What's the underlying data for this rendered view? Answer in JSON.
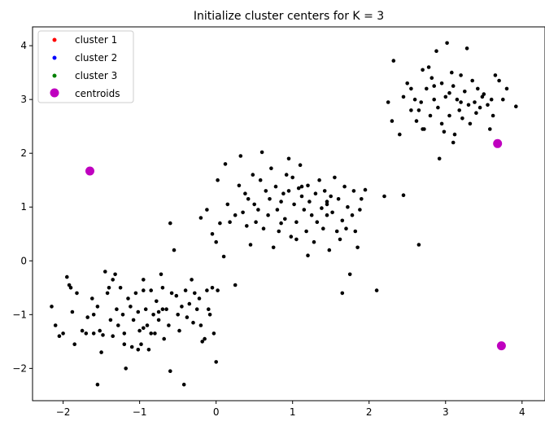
{
  "chart_data": {
    "type": "scatter",
    "title": "Initialize cluster centers for K = 3",
    "xlabel": "",
    "ylabel": "",
    "xlim": [
      -2.4,
      4.3
    ],
    "ylim": [
      -2.6,
      4.35
    ],
    "xticks": [
      -2,
      -1,
      0,
      1,
      2,
      3,
      4
    ],
    "yticks": [
      -2,
      -1,
      0,
      1,
      2,
      3,
      4
    ],
    "grid": false,
    "legend_position": "top-left",
    "legend": [
      {
        "label": "cluster 1",
        "color": "#ff0000",
        "marker": "small-dot"
      },
      {
        "label": "cluster 2",
        "color": "#0000ff",
        "marker": "small-dot"
      },
      {
        "label": "cluster 3",
        "color": "#008000",
        "marker": "small-dot"
      },
      {
        "label": "centroids",
        "color": "#bf00bf",
        "marker": "large-dot"
      }
    ],
    "series": [
      {
        "role": "points",
        "color": "#000000",
        "points": [
          [
            -2.15,
            -0.85
          ],
          [
            -2.1,
            -1.2
          ],
          [
            -2.05,
            -1.4
          ],
          [
            -2.0,
            -1.35
          ],
          [
            -1.95,
            -0.3
          ],
          [
            -1.92,
            -0.45
          ],
          [
            -1.9,
            -0.5
          ],
          [
            -1.88,
            -0.95
          ],
          [
            -1.85,
            -1.55
          ],
          [
            -1.82,
            -0.6
          ],
          [
            -1.75,
            -1.3
          ],
          [
            -1.7,
            -1.35
          ],
          [
            -1.68,
            -1.05
          ],
          [
            -1.62,
            -0.7
          ],
          [
            -1.6,
            -1.0
          ],
          [
            -1.55,
            -0.85
          ],
          [
            -1.52,
            -1.3
          ],
          [
            -1.5,
            -1.7
          ],
          [
            -1.45,
            -0.2
          ],
          [
            -1.42,
            -0.6
          ],
          [
            -1.4,
            -0.5
          ],
          [
            -1.38,
            -1.1
          ],
          [
            -1.35,
            -1.4
          ],
          [
            -1.32,
            -0.25
          ],
          [
            -1.3,
            -0.9
          ],
          [
            -1.28,
            -1.2
          ],
          [
            -1.25,
            -0.5
          ],
          [
            -1.22,
            -1.0
          ],
          [
            -1.2,
            -1.35
          ],
          [
            -1.18,
            -2.0
          ],
          [
            -1.15,
            -0.7
          ],
          [
            -1.12,
            -0.85
          ],
          [
            -1.1,
            -1.6
          ],
          [
            -1.08,
            -1.1
          ],
          [
            -1.05,
            -0.6
          ],
          [
            -1.02,
            -0.95
          ],
          [
            -1.0,
            -1.3
          ],
          [
            -0.98,
            -1.55
          ],
          [
            -0.95,
            -0.35
          ],
          [
            -0.92,
            -0.9
          ],
          [
            -0.9,
            -1.2
          ],
          [
            -0.88,
            -1.65
          ],
          [
            -0.85,
            -0.55
          ],
          [
            -0.82,
            -1.0
          ],
          [
            -0.8,
            -1.35
          ],
          [
            -0.78,
            -0.75
          ],
          [
            -0.75,
            -1.1
          ],
          [
            -0.72,
            -0.25
          ],
          [
            -0.7,
            -0.5
          ],
          [
            -0.68,
            -1.45
          ],
          [
            -0.65,
            -0.9
          ],
          [
            -0.62,
            -1.2
          ],
          [
            -0.6,
            -2.05
          ],
          [
            -0.58,
            -0.6
          ],
          [
            -0.55,
            0.2
          ],
          [
            -0.52,
            -0.65
          ],
          [
            -0.5,
            -1.0
          ],
          [
            -0.48,
            -1.3
          ],
          [
            -0.45,
            -0.85
          ],
          [
            -0.42,
            -2.3
          ],
          [
            -0.4,
            -0.55
          ],
          [
            -0.38,
            -1.05
          ],
          [
            -0.35,
            -0.8
          ],
          [
            -0.32,
            -0.35
          ],
          [
            -0.3,
            -1.15
          ],
          [
            -0.28,
            -0.6
          ],
          [
            -0.25,
            -0.9
          ],
          [
            -0.22,
            -0.7
          ],
          [
            -0.2,
            -1.2
          ],
          [
            -0.18,
            -1.5
          ],
          [
            -0.15,
            -1.45
          ],
          [
            -0.12,
            -0.55
          ],
          [
            -0.1,
            -0.9
          ],
          [
            -0.08,
            -1.0
          ],
          [
            -0.05,
            -0.5
          ],
          [
            -0.03,
            -1.35
          ],
          [
            0.0,
            -1.88
          ],
          [
            0.02,
            -0.55
          ],
          [
            -0.6,
            0.7
          ],
          [
            -1.55,
            -2.3
          ],
          [
            -1.2,
            -1.55
          ],
          [
            -0.95,
            -1.25
          ],
          [
            -0.85,
            -1.35
          ],
          [
            -0.75,
            -0.95
          ],
          [
            -0.7,
            -0.9
          ],
          [
            -1.35,
            -0.35
          ],
          [
            -1.48,
            -1.38
          ],
          [
            -1.02,
            -1.65
          ],
          [
            -0.95,
            -0.55
          ],
          [
            -1.6,
            -1.35
          ],
          [
            -0.2,
            0.8
          ],
          [
            -0.12,
            0.95
          ],
          [
            0.0,
            0.35
          ],
          [
            0.02,
            1.5
          ],
          [
            0.05,
            0.7
          ],
          [
            0.1,
            0.08
          ],
          [
            0.12,
            1.8
          ],
          [
            0.15,
            1.05
          ],
          [
            0.18,
            0.72
          ],
          [
            0.25,
            0.85
          ],
          [
            0.3,
            1.4
          ],
          [
            0.32,
            1.95
          ],
          [
            0.35,
            0.9
          ],
          [
            0.38,
            1.25
          ],
          [
            0.4,
            0.65
          ],
          [
            0.42,
            1.15
          ],
          [
            0.45,
            0.3
          ],
          [
            0.48,
            1.6
          ],
          [
            0.5,
            1.05
          ],
          [
            0.52,
            0.72
          ],
          [
            0.55,
            0.95
          ],
          [
            0.58,
            1.5
          ],
          [
            0.6,
            2.02
          ],
          [
            0.62,
            0.6
          ],
          [
            0.65,
            1.3
          ],
          [
            0.68,
            0.85
          ],
          [
            0.7,
            1.15
          ],
          [
            0.72,
            1.72
          ],
          [
            0.75,
            0.25
          ],
          [
            0.78,
            1.38
          ],
          [
            0.8,
            0.95
          ],
          [
            0.82,
            0.55
          ],
          [
            0.85,
            1.1
          ],
          [
            0.88,
            1.25
          ],
          [
            0.9,
            0.78
          ],
          [
            0.92,
            1.6
          ],
          [
            0.95,
            1.9
          ],
          [
            0.98,
            0.45
          ],
          [
            1.0,
            1.55
          ],
          [
            1.02,
            1.05
          ],
          [
            1.05,
            0.72
          ],
          [
            1.08,
            1.35
          ],
          [
            1.1,
            1.78
          ],
          [
            1.12,
            1.2
          ],
          [
            1.15,
            0.95
          ],
          [
            1.18,
            0.55
          ],
          [
            1.2,
            1.4
          ],
          [
            1.22,
            1.1
          ],
          [
            1.25,
            0.85
          ],
          [
            1.28,
            0.35
          ],
          [
            1.3,
            1.25
          ],
          [
            1.32,
            0.72
          ],
          [
            1.35,
            1.5
          ],
          [
            1.38,
            0.98
          ],
          [
            1.4,
            0.6
          ],
          [
            1.42,
            1.3
          ],
          [
            1.45,
            1.05
          ],
          [
            1.48,
            0.2
          ],
          [
            1.5,
            1.2
          ],
          [
            1.52,
            0.9
          ],
          [
            1.55,
            1.55
          ],
          [
            1.58,
            0.55
          ],
          [
            1.6,
            1.15
          ],
          [
            1.62,
            0.4
          ],
          [
            1.65,
            0.75
          ],
          [
            1.68,
            1.38
          ],
          [
            1.7,
            0.6
          ],
          [
            1.72,
            1.0
          ],
          [
            1.75,
            -0.25
          ],
          [
            1.78,
            0.85
          ],
          [
            1.8,
            1.3
          ],
          [
            1.82,
            0.55
          ],
          [
            1.85,
            0.25
          ],
          [
            1.88,
            0.95
          ],
          [
            1.9,
            1.15
          ],
          [
            1.95,
            1.32
          ],
          [
            2.1,
            -0.55
          ],
          [
            2.2,
            1.2
          ],
          [
            2.45,
            1.22
          ],
          [
            2.65,
            0.3
          ],
          [
            -0.05,
            0.5
          ],
          [
            0.25,
            -0.45
          ],
          [
            1.65,
            -0.6
          ],
          [
            1.2,
            0.1
          ],
          [
            1.45,
            0.85
          ],
          [
            0.95,
            1.3
          ],
          [
            1.12,
            1.38
          ],
          [
            1.45,
            1.1
          ],
          [
            0.85,
            0.7
          ],
          [
            1.05,
            0.4
          ],
          [
            2.25,
            2.95
          ],
          [
            2.3,
            2.6
          ],
          [
            2.32,
            3.72
          ],
          [
            2.4,
            2.35
          ],
          [
            2.45,
            3.05
          ],
          [
            2.5,
            3.3
          ],
          [
            2.55,
            2.8
          ],
          [
            2.6,
            3.0
          ],
          [
            2.62,
            2.6
          ],
          [
            2.65,
            2.8
          ],
          [
            2.68,
            2.95
          ],
          [
            2.7,
            3.55
          ],
          [
            2.72,
            2.45
          ],
          [
            2.75,
            3.2
          ],
          [
            2.78,
            3.6
          ],
          [
            2.8,
            2.7
          ],
          [
            2.82,
            3.4
          ],
          [
            2.85,
            3.0
          ],
          [
            2.88,
            3.9
          ],
          [
            2.9,
            2.85
          ],
          [
            2.92,
            1.9
          ],
          [
            2.95,
            3.3
          ],
          [
            2.98,
            2.4
          ],
          [
            3.0,
            3.05
          ],
          [
            3.02,
            4.05
          ],
          [
            3.05,
            2.7
          ],
          [
            3.08,
            3.5
          ],
          [
            3.1,
            3.25
          ],
          [
            3.12,
            2.35
          ],
          [
            3.15,
            3.0
          ],
          [
            3.18,
            2.8
          ],
          [
            3.2,
            3.45
          ],
          [
            3.22,
            2.65
          ],
          [
            3.25,
            3.15
          ],
          [
            3.28,
            3.95
          ],
          [
            3.3,
            2.9
          ],
          [
            3.32,
            2.55
          ],
          [
            3.35,
            3.35
          ],
          [
            3.38,
            2.95
          ],
          [
            3.4,
            2.75
          ],
          [
            3.42,
            3.2
          ],
          [
            3.45,
            2.85
          ],
          [
            3.48,
            3.05
          ],
          [
            3.5,
            3.1
          ],
          [
            3.55,
            2.9
          ],
          [
            3.58,
            2.45
          ],
          [
            3.6,
            3.0
          ],
          [
            3.62,
            2.7
          ],
          [
            3.65,
            3.45
          ],
          [
            3.7,
            3.35
          ],
          [
            3.75,
            3.0
          ],
          [
            3.8,
            3.2
          ],
          [
            3.92,
            2.87
          ],
          [
            2.55,
            3.2
          ],
          [
            2.7,
            2.45
          ],
          [
            2.85,
            3.25
          ],
          [
            3.05,
            3.12
          ],
          [
            3.2,
            2.95
          ],
          [
            2.95,
            2.55
          ],
          [
            3.1,
            2.2
          ]
        ]
      },
      {
        "role": "centroids",
        "color": "#bf00bf",
        "points": [
          [
            -1.65,
            1.67
          ],
          [
            3.68,
            2.18
          ],
          [
            3.73,
            -1.58
          ]
        ]
      }
    ]
  }
}
